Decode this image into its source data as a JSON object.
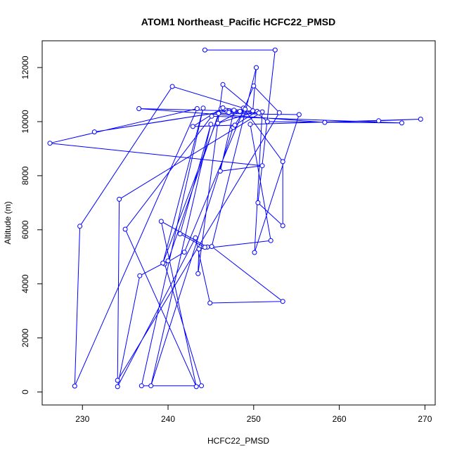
{
  "chart_data": {
    "type": "line",
    "title": "ATOM1 Northeast_Pacific HCFC22_PMSD",
    "xlabel": "HCFC22_PMSD",
    "ylabel": "Altitude (m)",
    "xlim": [
      225.3,
      271.2
    ],
    "ylim": [
      -480,
      12990
    ],
    "xticks": [
      230,
      240,
      250,
      260,
      270
    ],
    "yticks": [
      0,
      2000,
      4000,
      6000,
      8000,
      10000,
      12000
    ],
    "marker": "open-circle",
    "series_color": "#0000ff",
    "grid": false,
    "legend": "none",
    "points": [
      [
        244.3,
        12650
      ],
      [
        252.5,
        12650
      ],
      [
        250.5,
        7000
      ],
      [
        253.4,
        6150
      ],
      [
        253.4,
        8520
      ],
      [
        248.8,
        10500
      ],
      [
        240.5,
        11300
      ],
      [
        229.7,
        6130
      ],
      [
        229.1,
        220
      ],
      [
        243.4,
        10480
      ],
      [
        226.2,
        9200
      ],
      [
        251.0,
        8370
      ],
      [
        246.1,
        8170
      ],
      [
        247.7,
        10420
      ],
      [
        231.4,
        9620
      ],
      [
        247.1,
        10400
      ],
      [
        236.6,
        10480
      ],
      [
        258.3,
        9970
      ],
      [
        264.6,
        10030
      ],
      [
        269.5,
        10090
      ],
      [
        249.6,
        9900
      ],
      [
        252.0,
        5600
      ],
      [
        243.6,
        5290
      ],
      [
        243.5,
        4380
      ],
      [
        246.4,
        11370
      ],
      [
        251.6,
        10000
      ],
      [
        267.3,
        9950
      ],
      [
        245.1,
        10200
      ],
      [
        235.0,
        6020
      ],
      [
        243.3,
        200
      ],
      [
        239.2,
        6310
      ],
      [
        244.6,
        5360
      ],
      [
        244.3,
        5350
      ],
      [
        241.4,
        5850
      ],
      [
        245.0,
        9900
      ],
      [
        238.0,
        230
      ],
      [
        247.6,
        9780
      ],
      [
        249.0,
        10460
      ],
      [
        246.9,
        10360
      ],
      [
        249.9,
        10400
      ],
      [
        250.3,
        12000
      ],
      [
        245.1,
        5380
      ],
      [
        253.4,
        3350
      ],
      [
        244.9,
        3290
      ],
      [
        243.2,
        5700
      ],
      [
        234.1,
        200
      ],
      [
        236.7,
        4300
      ],
      [
        240.0,
        4850
      ],
      [
        245.9,
        10300
      ],
      [
        255.3,
        10260
      ],
      [
        250.1,
        5160
      ],
      [
        251.0,
        10360
      ],
      [
        234.3,
        7130
      ],
      [
        234.1,
        430
      ],
      [
        253.0,
        10330
      ],
      [
        250.0,
        11320
      ],
      [
        241.9,
        5170
      ],
      [
        239.6,
        4740
      ],
      [
        243.9,
        230
      ],
      [
        236.9,
        230
      ],
      [
        244.1,
        10500
      ],
      [
        239.4,
        4770
      ],
      [
        246.2,
        10480
      ],
      [
        242.9,
        9820
      ],
      [
        247.8,
        9870
      ],
      [
        250.4,
        10380
      ],
      [
        245.8,
        9940
      ],
      [
        248.4,
        10380
      ],
      [
        247.1,
        10340
      ],
      [
        250.6,
        10320
      ],
      [
        246.4,
        10510
      ]
    ]
  }
}
